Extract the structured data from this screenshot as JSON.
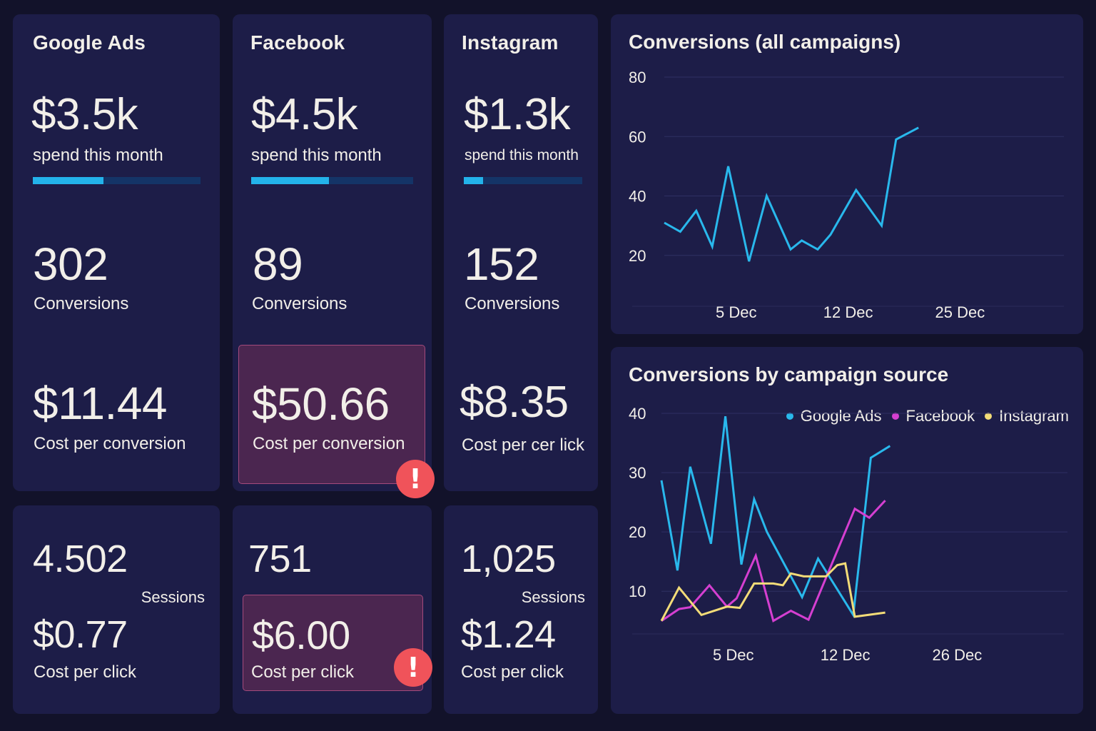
{
  "colors": {
    "google": "#29b8ec",
    "facebook": "#d53fd1",
    "instagram": "#f3dc78",
    "alert": "#f0535a"
  },
  "sources": [
    {
      "name": "Google Ads",
      "spend": "$3.5k",
      "spend_label": "spend this month",
      "spend_progress_pct": 42,
      "conversions": "302",
      "conversions_label": "Conversions",
      "cost_per_conversion": "$11.44",
      "cost_per_conversion_label": "Cost per conversion",
      "cost_per_conversion_alert": false,
      "sessions": "4.502",
      "sessions_label": "Sessions",
      "cost_per_click": "$0.77",
      "cost_per_click_label": "Cost per click",
      "cost_per_click_alert": false
    },
    {
      "name": "Facebook",
      "spend": "$4.5k",
      "spend_label": "spend this month",
      "spend_progress_pct": 48,
      "conversions": "89",
      "conversions_label": "Conversions",
      "cost_per_conversion": "$50.66",
      "cost_per_conversion_label": "Cost per conversion",
      "cost_per_conversion_alert": true,
      "sessions": "751",
      "sessions_label": "",
      "cost_per_click": "$6.00",
      "cost_per_click_label": "Cost per click",
      "cost_per_click_alert": true
    },
    {
      "name": "Instagram",
      "spend": "$1.3k",
      "spend_label": "spend this month",
      "spend_progress_pct": 16,
      "conversions": "152",
      "conversions_label": "Conversions",
      "cost_per_conversion": "$8.35",
      "cost_per_conversion_label": "Cost per cer lick",
      "cost_per_conversion_alert": false,
      "sessions": "1,025",
      "sessions_label": "Sessions",
      "cost_per_click": "$1.24",
      "cost_per_click_label": "Cost per click",
      "cost_per_click_alert": false
    }
  ],
  "alert_icon_glyph": "!",
  "chart_data": [
    {
      "type": "line",
      "title": "Conversions (all campaigns)",
      "xlabel": "",
      "ylabel": "",
      "yticks": [
        20,
        40,
        60,
        80
      ],
      "ylim": [
        0,
        80
      ],
      "xtick_labels": [
        "5 Dec",
        "12 Dec",
        "25 Dec"
      ],
      "xtick_positions": [
        4.5,
        11.5,
        18.5
      ],
      "x_range": [
        0,
        26
      ],
      "grid": true,
      "series": [
        {
          "name": "All campaigns",
          "color": "#29b8ec",
          "x": [
            0,
            1,
            2,
            3,
            4,
            5.3,
            6.4,
            7.9,
            8.6,
            9.6,
            10.4,
            12,
            13.6,
            14.5,
            15.9
          ],
          "values": [
            31,
            28,
            35,
            23,
            50,
            18,
            40,
            22,
            25,
            22,
            27,
            42,
            30,
            59,
            63
          ]
        }
      ]
    },
    {
      "type": "line",
      "title": "Conversions by campaign source",
      "xlabel": "",
      "ylabel": "",
      "yticks": [
        10,
        20,
        30,
        40
      ],
      "ylim": [
        2.8,
        40
      ],
      "xtick_labels": [
        "5 Dec",
        "12 Dec",
        "26 Dec"
      ],
      "xtick_positions": [
        4.5,
        11.5,
        18.5
      ],
      "x_range": [
        0,
        26
      ],
      "grid": true,
      "legend": "top-right",
      "series": [
        {
          "name": "Google Ads",
          "color": "#29b8ec",
          "x": [
            0,
            1,
            1.8,
            3.1,
            4,
            5,
            5.8,
            6.6,
            8.8,
            9.8,
            12,
            13.1,
            14.3
          ],
          "values": [
            28.7,
            13.5,
            31,
            18,
            39.5,
            14.5,
            25.5,
            20,
            9,
            15.5,
            6,
            32.5,
            34.5
          ]
        },
        {
          "name": "Facebook",
          "color": "#d53fd1",
          "x": [
            0,
            1.1,
            1.8,
            3,
            4.1,
            4.7,
            5.9,
            7,
            8.1,
            9.2,
            12.1,
            13,
            14
          ],
          "values": [
            5,
            7,
            7.3,
            11,
            7.4,
            8.8,
            16,
            5,
            6.7,
            5.2,
            23.9,
            22.4,
            25.3
          ]
        },
        {
          "name": "Instagram",
          "color": "#f3dc78",
          "x": [
            0,
            1.1,
            2.5,
            4.1,
            4.9,
            5.8,
            7,
            7.6,
            8.1,
            8.9,
            10.3,
            11,
            11.5,
            12.1,
            14
          ],
          "values": [
            5,
            10.6,
            6,
            7.4,
            7.2,
            11.3,
            11.3,
            11,
            13,
            12.5,
            12.5,
            14.4,
            14.7,
            5.7,
            6.4
          ]
        }
      ]
    }
  ]
}
